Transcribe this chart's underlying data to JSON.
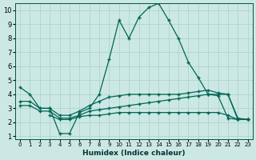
{
  "xlabel": "Humidex (Indice chaleur)",
  "bg_color": "#cce8e4",
  "grid_color": "#aacfca",
  "line_color": "#006655",
  "xlim": [
    -0.5,
    23.5
  ],
  "ylim": [
    0.8,
    10.5
  ],
  "xticks": [
    0,
    1,
    2,
    3,
    4,
    5,
    6,
    7,
    8,
    9,
    10,
    11,
    12,
    13,
    14,
    15,
    16,
    17,
    18,
    19,
    20,
    21,
    22,
    23
  ],
  "yticks": [
    1,
    2,
    3,
    4,
    5,
    6,
    7,
    8,
    9,
    10
  ],
  "line1_x": [
    0,
    1,
    2,
    3,
    4,
    5,
    6,
    7,
    8,
    9,
    10,
    11,
    12,
    13,
    14,
    15,
    16,
    17,
    18,
    19,
    20,
    21,
    22,
    23
  ],
  "line1_y": [
    4.5,
    4.0,
    3.0,
    3.0,
    1.2,
    1.2,
    2.7,
    3.0,
    4.0,
    6.5,
    9.3,
    8.0,
    9.5,
    10.2,
    10.5,
    9.3,
    8.0,
    6.3,
    5.2,
    4.0,
    4.0,
    4.0,
    2.2,
    2.2
  ],
  "line2_x": [
    0,
    1,
    2,
    3,
    4,
    5,
    6,
    7,
    8,
    9,
    10,
    11,
    12,
    13,
    14,
    15,
    16,
    17,
    18,
    19,
    20,
    21,
    22,
    23
  ],
  "line2_y": [
    3.5,
    3.5,
    3.0,
    3.0,
    2.5,
    2.5,
    2.8,
    3.2,
    3.5,
    3.8,
    3.9,
    4.0,
    4.0,
    4.0,
    4.0,
    4.0,
    4.0,
    4.1,
    4.2,
    4.3,
    4.1,
    4.0,
    2.3,
    2.2
  ],
  "line3_x": [
    0,
    1,
    2,
    3,
    4,
    5,
    6,
    7,
    8,
    9,
    10,
    11,
    12,
    13,
    14,
    15,
    16,
    17,
    18,
    19,
    20,
    21,
    22,
    23
  ],
  "line3_y": [
    3.2,
    3.2,
    2.8,
    2.8,
    2.3,
    2.3,
    2.5,
    2.8,
    2.9,
    3.0,
    3.1,
    3.2,
    3.3,
    3.4,
    3.5,
    3.6,
    3.7,
    3.8,
    3.9,
    4.0,
    3.9,
    2.3,
    2.2,
    2.2
  ],
  "line4_x": [
    3,
    4,
    5,
    6,
    7,
    8,
    9,
    10,
    11,
    12,
    13,
    14,
    15,
    16,
    17,
    18,
    19,
    20,
    21,
    22,
    23
  ],
  "line4_y": [
    2.5,
    2.2,
    2.2,
    2.4,
    2.5,
    2.5,
    2.6,
    2.7,
    2.7,
    2.7,
    2.7,
    2.7,
    2.7,
    2.7,
    2.7,
    2.7,
    2.7,
    2.7,
    2.5,
    2.2,
    2.2
  ]
}
